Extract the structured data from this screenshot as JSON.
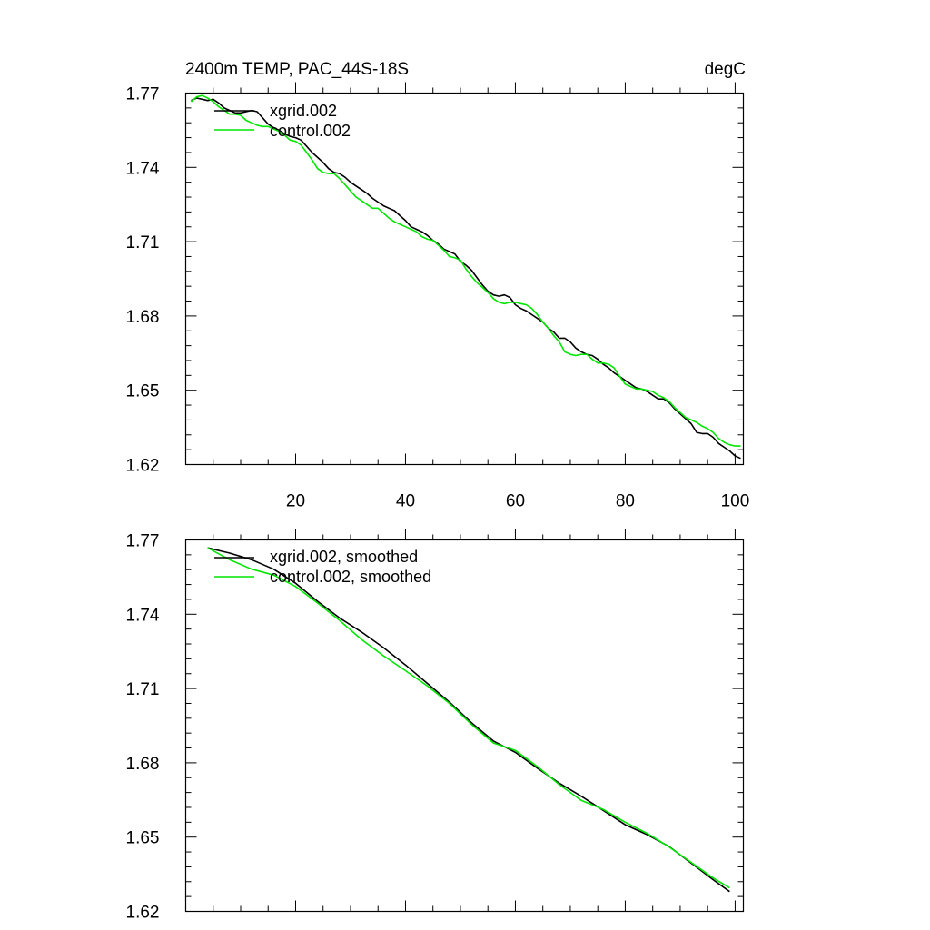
{
  "chart_data": [
    {
      "type": "line",
      "title_left": "2400m TEMP, PAC_44S-18S",
      "title_right": "degC",
      "xlabel": "",
      "ylabel": "",
      "xlim": [
        0,
        101.5
      ],
      "ylim": [
        1.62,
        1.77
      ],
      "xticks": [
        20,
        40,
        60,
        80,
        100
      ],
      "xtick_labels": [
        "20",
        "40",
        "60",
        "80",
        "100"
      ],
      "yticks": [
        1.62,
        1.65,
        1.68,
        1.71,
        1.74,
        1.77
      ],
      "ytick_labels": [
        "1.62",
        "1.65",
        "1.68",
        "1.71",
        "1.74",
        "1.77"
      ],
      "legend_position": "top-left",
      "series": [
        {
          "name": "xgrid.002",
          "color": "#000000",
          "x": [
            1,
            2,
            3,
            4,
            5,
            6,
            7,
            8,
            9,
            10,
            11,
            12,
            13,
            14,
            15,
            16,
            17,
            18,
            19,
            20,
            21,
            22,
            23,
            24,
            25,
            26,
            27,
            28,
            29,
            30,
            31,
            32,
            33,
            34,
            35,
            36,
            37,
            38,
            39,
            40,
            41,
            42,
            43,
            44,
            45,
            46,
            47,
            48,
            49,
            50,
            51,
            52,
            53,
            54,
            55,
            56,
            57,
            58,
            59,
            60,
            61,
            62,
            63,
            64,
            65,
            66,
            67,
            68,
            69,
            70,
            71,
            72,
            73,
            74,
            75,
            76,
            77,
            78,
            79,
            80,
            81,
            82,
            83,
            84,
            85,
            86,
            87,
            88,
            89,
            90,
            91,
            92,
            93,
            94,
            95,
            96,
            97,
            98,
            99,
            100,
            101
          ],
          "y": [
            1.767,
            1.768,
            1.7675,
            1.767,
            1.7675,
            1.766,
            1.764,
            1.763,
            1.762,
            1.762,
            1.7625,
            1.763,
            1.7625,
            1.76,
            1.7575,
            1.756,
            1.755,
            1.7535,
            1.7525,
            1.752,
            1.751,
            1.7485,
            1.746,
            1.744,
            1.742,
            1.7395,
            1.738,
            1.7375,
            1.736,
            1.734,
            1.7325,
            1.731,
            1.7295,
            1.7275,
            1.726,
            1.7245,
            1.7235,
            1.7225,
            1.7205,
            1.7185,
            1.716,
            1.715,
            1.714,
            1.7125,
            1.7105,
            1.709,
            1.707,
            1.706,
            1.705,
            1.702,
            1.7005,
            1.6985,
            1.6955,
            1.6925,
            1.69,
            1.6885,
            1.688,
            1.6885,
            1.6875,
            1.6845,
            1.683,
            1.682,
            1.6805,
            1.679,
            1.6775,
            1.675,
            1.6735,
            1.671,
            1.671,
            1.6695,
            1.667,
            1.6655,
            1.6645,
            1.664,
            1.6625,
            1.6605,
            1.659,
            1.657,
            1.6555,
            1.654,
            1.6525,
            1.651,
            1.6505,
            1.6495,
            1.648,
            1.6465,
            1.6465,
            1.645,
            1.6425,
            1.6405,
            1.6385,
            1.6365,
            1.633,
            1.6325,
            1.6325,
            1.631,
            1.6285,
            1.627,
            1.6255,
            1.6235,
            1.6225
          ]
        },
        {
          "name": "control.002",
          "color": "#00e600",
          "x": [
            1,
            2,
            3,
            4,
            5,
            6,
            7,
            8,
            9,
            10,
            11,
            12,
            13,
            14,
            15,
            16,
            17,
            18,
            19,
            20,
            21,
            22,
            23,
            24,
            25,
            26,
            27,
            28,
            29,
            30,
            31,
            32,
            33,
            34,
            35,
            36,
            37,
            38,
            39,
            40,
            41,
            42,
            43,
            44,
            45,
            46,
            47,
            48,
            49,
            50,
            51,
            52,
            53,
            54,
            55,
            56,
            57,
            58,
            59,
            60,
            61,
            62,
            63,
            64,
            65,
            66,
            67,
            68,
            69,
            70,
            71,
            72,
            73,
            74,
            75,
            76,
            77,
            78,
            79,
            80,
            81,
            82,
            83,
            84,
            85,
            86,
            87,
            88,
            89,
            90,
            91,
            92,
            93,
            94,
            95,
            96,
            97,
            98,
            99,
            100,
            101
          ],
          "y": [
            1.7665,
            1.7685,
            1.769,
            1.768,
            1.7665,
            1.7645,
            1.763,
            1.7615,
            1.7615,
            1.761,
            1.759,
            1.758,
            1.757,
            1.7565,
            1.7565,
            1.7555,
            1.7545,
            1.753,
            1.751,
            1.7505,
            1.749,
            1.746,
            1.743,
            1.7395,
            1.738,
            1.7375,
            1.7375,
            1.7355,
            1.733,
            1.7305,
            1.728,
            1.7265,
            1.725,
            1.7235,
            1.7235,
            1.7215,
            1.7195,
            1.718,
            1.717,
            1.716,
            1.715,
            1.714,
            1.712,
            1.711,
            1.7105,
            1.7085,
            1.7065,
            1.704,
            1.7035,
            1.7025,
            1.699,
            1.696,
            1.6935,
            1.6915,
            1.6895,
            1.687,
            1.6855,
            1.685,
            1.6855,
            1.6855,
            1.685,
            1.6845,
            1.683,
            1.6805,
            1.6775,
            1.675,
            1.672,
            1.6695,
            1.6655,
            1.6645,
            1.664,
            1.6645,
            1.6645,
            1.6625,
            1.661,
            1.661,
            1.6605,
            1.659,
            1.6555,
            1.6525,
            1.6515,
            1.6505,
            1.6505,
            1.65,
            1.6495,
            1.648,
            1.647,
            1.6455,
            1.643,
            1.641,
            1.639,
            1.638,
            1.637,
            1.6355,
            1.6345,
            1.633,
            1.6305,
            1.629,
            1.628,
            1.6275,
            1.6275
          ]
        }
      ]
    },
    {
      "type": "line",
      "xlabel": "",
      "ylabel": "",
      "xlim": [
        0,
        101.5
      ],
      "ylim": [
        1.62,
        1.77
      ],
      "xticks": [
        20,
        40,
        60,
        80,
        100
      ],
      "yticks": [
        1.62,
        1.65,
        1.68,
        1.71,
        1.74,
        1.77
      ],
      "ytick_labels": [
        "1.62",
        "1.65",
        "1.68",
        "1.71",
        "1.74",
        "1.77"
      ],
      "legend_position": "top-left",
      "series": [
        {
          "name": "xgrid.002, smoothed",
          "color": "#000000",
          "x": [
            4,
            8,
            12,
            16,
            20,
            24,
            28,
            32,
            36,
            40,
            44,
            48,
            52,
            56,
            60,
            64,
            68,
            72,
            76,
            80,
            84,
            88,
            92,
            96,
            99
          ],
          "y": [
            1.7668,
            1.7647,
            1.762,
            1.7582,
            1.7525,
            1.7452,
            1.7385,
            1.7328,
            1.7265,
            1.7195,
            1.712,
            1.7045,
            1.6962,
            1.6888,
            1.6842,
            1.6778,
            1.6718,
            1.6665,
            1.6608,
            1.655,
            1.651,
            1.6462,
            1.6395,
            1.6328,
            1.628
          ]
        },
        {
          "name": "control.002, smoothed",
          "color": "#00e600",
          "x": [
            4,
            8,
            12,
            16,
            20,
            24,
            28,
            32,
            36,
            40,
            44,
            48,
            52,
            56,
            60,
            64,
            68,
            72,
            76,
            80,
            84,
            88,
            92,
            96,
            99
          ],
          "y": [
            1.7668,
            1.762,
            1.7582,
            1.7558,
            1.7512,
            1.7445,
            1.7375,
            1.7298,
            1.7232,
            1.7172,
            1.711,
            1.704,
            1.6955,
            1.688,
            1.685,
            1.6785,
            1.6712,
            1.6648,
            1.6612,
            1.656,
            1.6515,
            1.646,
            1.6398,
            1.6335,
            1.6295
          ]
        }
      ]
    }
  ]
}
